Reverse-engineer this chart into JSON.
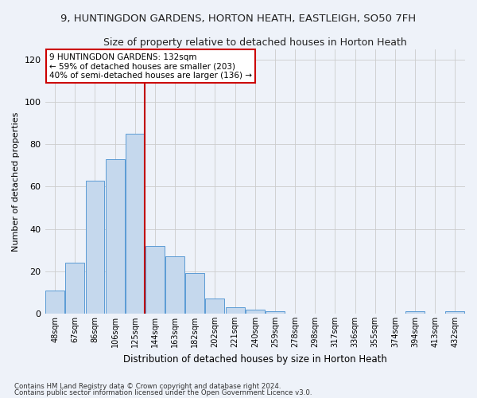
{
  "title": "9, HUNTINGDON GARDENS, HORTON HEATH, EASTLEIGH, SO50 7FH",
  "subtitle": "Size of property relative to detached houses in Horton Heath",
  "xlabel": "Distribution of detached houses by size in Horton Heath",
  "ylabel": "Number of detached properties",
  "footnote1": "Contains HM Land Registry data © Crown copyright and database right 2024.",
  "footnote2": "Contains public sector information licensed under the Open Government Licence v3.0.",
  "annotation_line1": "9 HUNTINGDON GARDENS: 132sqm",
  "annotation_line2": "← 59% of detached houses are smaller (203)",
  "annotation_line3": "40% of semi-detached houses are larger (136) →",
  "bar_labels": [
    "48sqm",
    "67sqm",
    "86sqm",
    "106sqm",
    "125sqm",
    "144sqm",
    "163sqm",
    "182sqm",
    "202sqm",
    "221sqm",
    "240sqm",
    "259sqm",
    "278sqm",
    "298sqm",
    "317sqm",
    "336sqm",
    "355sqm",
    "374sqm",
    "394sqm",
    "413sqm",
    "432sqm"
  ],
  "bar_values": [
    11,
    24,
    63,
    73,
    85,
    32,
    27,
    19,
    7,
    3,
    2,
    1,
    0,
    0,
    0,
    0,
    0,
    0,
    1,
    0,
    1
  ],
  "bar_color": "#c5d8ed",
  "bar_edge_color": "#5b9bd5",
  "vline_x": 4.5,
  "vline_color": "#c00000",
  "ylim": [
    0,
    125
  ],
  "yticks": [
    0,
    20,
    40,
    60,
    80,
    100,
    120
  ],
  "grid_color": "#cccccc",
  "background_color": "#eef2f9",
  "annotation_box_color": "#ffffff",
  "annotation_box_edge": "#cc0000",
  "title_fontsize": 9.5,
  "subtitle_fontsize": 9
}
